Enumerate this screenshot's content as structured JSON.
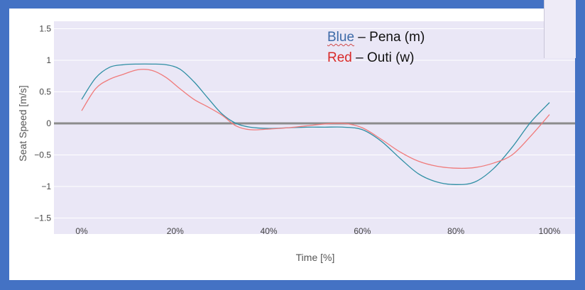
{
  "chart_data": {
    "type": "line",
    "xlabel": "Time [%]",
    "ylabel": "Seat Speed [m/s]",
    "xlim": [
      0,
      100
    ],
    "ylim": [
      -1.6,
      1.6
    ],
    "x_ticks": [
      "0%",
      "20%",
      "40%",
      "60%",
      "80%",
      "100%"
    ],
    "x_tick_values": [
      0,
      20,
      40,
      60,
      80,
      100
    ],
    "y_ticks": [
      "1.5",
      "1",
      "0.5",
      "0",
      "−0.5",
      "−1",
      "−1.5"
    ],
    "y_tick_values": [
      1.5,
      1,
      0.5,
      0,
      -0.5,
      -1,
      -1.5
    ],
    "grid": true,
    "annotations": [
      {
        "colored": "Blue",
        "rest": " – Pena (m)"
      },
      {
        "colored": "Red",
        "rest": " – Outi (w)"
      }
    ],
    "series": [
      {
        "color": "#2f8fa4",
        "x": [
          0,
          3,
          6,
          9,
          12,
          15,
          18,
          21,
          24,
          27,
          30,
          33,
          36,
          40,
          44,
          48,
          52,
          56,
          60,
          64,
          68,
          72,
          76,
          80,
          84,
          88,
          92,
          96,
          100
        ],
        "values": [
          0.38,
          0.72,
          0.89,
          0.93,
          0.94,
          0.94,
          0.93,
          0.86,
          0.66,
          0.4,
          0.15,
          0.0,
          -0.06,
          -0.08,
          -0.07,
          -0.06,
          -0.06,
          -0.06,
          -0.1,
          -0.28,
          -0.55,
          -0.8,
          -0.93,
          -0.97,
          -0.93,
          -0.72,
          -0.38,
          0.02,
          0.33
        ]
      },
      {
        "color": "#f07a7a",
        "x": [
          0,
          3,
          6,
          9,
          12,
          15,
          18,
          21,
          24,
          27,
          30,
          33,
          36,
          40,
          44,
          48,
          52,
          56,
          60,
          64,
          68,
          72,
          76,
          80,
          84,
          88,
          92,
          96,
          100
        ],
        "values": [
          0.2,
          0.55,
          0.7,
          0.78,
          0.85,
          0.84,
          0.73,
          0.55,
          0.38,
          0.26,
          0.13,
          -0.04,
          -0.1,
          -0.09,
          -0.07,
          -0.04,
          -0.01,
          0.0,
          -0.07,
          -0.25,
          -0.45,
          -0.6,
          -0.68,
          -0.71,
          -0.7,
          -0.63,
          -0.5,
          -0.2,
          0.14
        ]
      }
    ]
  }
}
